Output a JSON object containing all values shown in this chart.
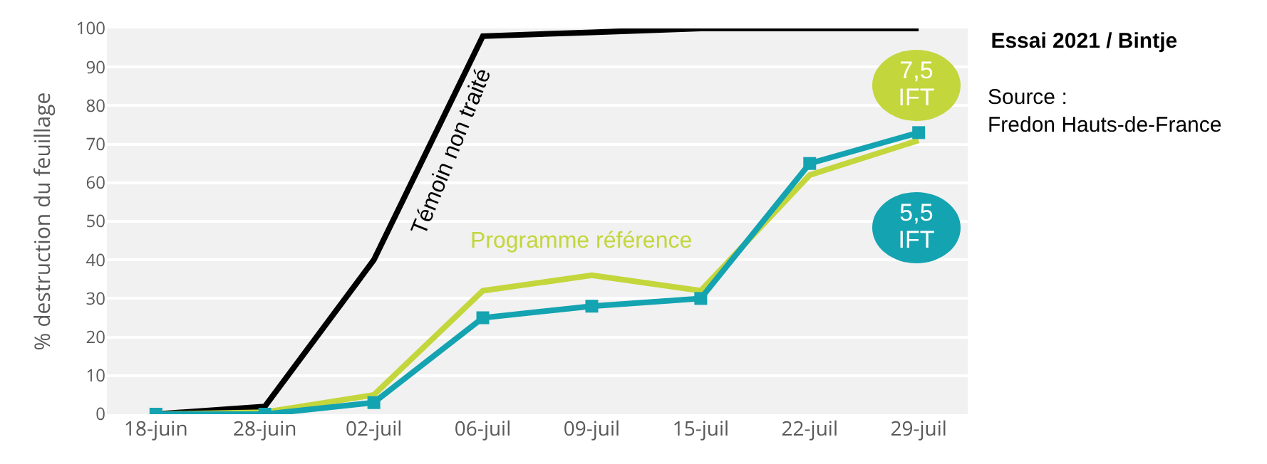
{
  "chart_data": {
    "type": "line",
    "title": "Essai 2021 / Bintje",
    "ylabel": "% destruction du feuillage",
    "categories": [
      "18-juin",
      "28-juin",
      "02-juil",
      "06-juil",
      "09-juil",
      "15-juil",
      "22-juil",
      "29-juil"
    ],
    "series": [
      {
        "name": "Témoin non traité",
        "color": "#000000",
        "values": [
          0,
          2,
          40,
          98,
          99,
          100,
          100,
          100
        ],
        "marker": "none"
      },
      {
        "name": "Programme référence",
        "color": "#c3d63c",
        "values": [
          0,
          0.5,
          5,
          32,
          36,
          32,
          62,
          71
        ],
        "marker": "none"
      },
      {
        "color": "#14a3b1",
        "values": [
          0,
          0,
          3,
          25,
          28,
          30,
          65,
          73
        ],
        "marker": "square"
      }
    ],
    "annotations": [
      "Source :\nFredon Hauts-de-France",
      "7,5\nIFT",
      "5,5\nIFT"
    ],
    "ylim": [
      0,
      100
    ],
    "yticks": [
      0,
      10,
      20,
      30,
      40,
      50,
      60,
      70,
      80,
      90,
      100
    ],
    "grid": "y",
    "legend": false,
    "line_style": "solid"
  }
}
